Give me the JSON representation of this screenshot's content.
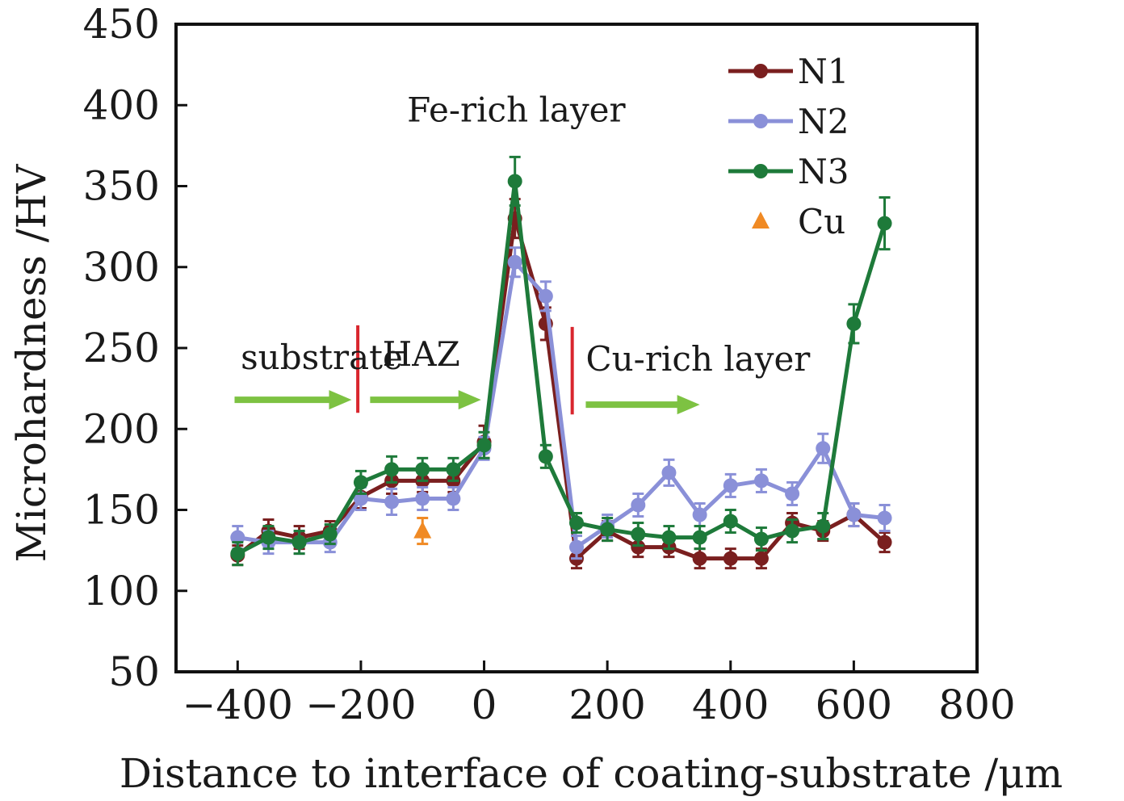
{
  "chart_data": {
    "type": "line",
    "title": "",
    "xlabel": "Distance to interface of coating-substrate /μm",
    "ylabel": "Microhardness /HV",
    "xlim": [
      -500,
      800
    ],
    "ylim": [
      50,
      450
    ],
    "xticks": [
      -400,
      -200,
      0,
      200,
      400,
      600,
      800
    ],
    "xtick_labels": [
      "−400",
      "−200",
      "0",
      "200",
      "400",
      "600",
      "800"
    ],
    "yticks": [
      50,
      100,
      150,
      200,
      250,
      300,
      350,
      400,
      450
    ],
    "ytick_labels": [
      "50",
      "100",
      "150",
      "200",
      "250",
      "300",
      "350",
      "400",
      "450"
    ],
    "grid": false,
    "legend_position": "top-right",
    "series": [
      {
        "name": "N1",
        "color": "#7a1f1f",
        "marker": "circle",
        "x": [
          -400,
          -350,
          -300,
          -250,
          -200,
          -150,
          -100,
          -50,
          0,
          50,
          100,
          150,
          200,
          250,
          300,
          350,
          400,
          450,
          500,
          550,
          600,
          650
        ],
        "y": [
          122,
          137,
          133,
          137,
          158,
          168,
          168,
          168,
          192,
          330,
          265,
          120,
          137,
          127,
          127,
          120,
          120,
          120,
          142,
          137,
          147,
          130
        ],
        "err": [
          6,
          7,
          7,
          6,
          7,
          8,
          7,
          7,
          10,
          12,
          10,
          6,
          6,
          6,
          6,
          6,
          6,
          6,
          6,
          6,
          7,
          6
        ]
      },
      {
        "name": "N2",
        "color": "#8a90d8",
        "marker": "circle",
        "x": [
          -400,
          -350,
          -300,
          -250,
          -200,
          -150,
          -100,
          -50,
          0,
          50,
          100,
          150,
          200,
          250,
          300,
          350,
          400,
          450,
          500,
          550,
          600,
          650
        ],
        "y": [
          133,
          130,
          130,
          130,
          157,
          155,
          157,
          157,
          188,
          303,
          282,
          127,
          140,
          153,
          173,
          147,
          165,
          168,
          160,
          188,
          147,
          145
        ],
        "err": [
          7,
          7,
          7,
          6,
          7,
          8,
          7,
          7,
          7,
          9,
          9,
          7,
          7,
          7,
          8,
          7,
          7,
          7,
          7,
          9,
          7,
          8
        ]
      },
      {
        "name": "N3",
        "color": "#1e7a3a",
        "marker": "circle",
        "x": [
          -400,
          -350,
          -300,
          -250,
          -200,
          -150,
          -100,
          -50,
          0,
          50,
          100,
          150,
          200,
          250,
          300,
          350,
          400,
          450,
          500,
          550,
          600,
          650
        ],
        "y": [
          123,
          133,
          130,
          135,
          167,
          175,
          175,
          175,
          190,
          353,
          183,
          142,
          138,
          135,
          133,
          133,
          143,
          132,
          137,
          140,
          265,
          327
        ],
        "err": [
          7,
          7,
          7,
          6,
          7,
          8,
          7,
          7,
          8,
          15,
          7,
          6,
          7,
          7,
          7,
          7,
          7,
          7,
          7,
          8,
          12,
          16
        ]
      },
      {
        "name": "Cu",
        "color": "#f08a24",
        "marker": "triangle",
        "line": false,
        "x": [
          -100
        ],
        "y": [
          137
        ],
        "err": [
          8
        ]
      }
    ],
    "annotations": [
      {
        "text": "substrate",
        "x": -395,
        "y": 237
      },
      {
        "text": "HAZ",
        "x": -165,
        "y": 239
      },
      {
        "text": "Fe-rich layer",
        "x": -125,
        "y": 390
      },
      {
        "text": "Cu-rich layer",
        "x": 165,
        "y": 236
      }
    ],
    "region_arrows": [
      {
        "x_from": -405,
        "x_to": -215,
        "y": 218,
        "color": "#7dc242"
      },
      {
        "x_from": -185,
        "x_to": -5,
        "y": 218,
        "color": "#7dc242"
      },
      {
        "x_from": 165,
        "x_to": 350,
        "y": 215,
        "color": "#7dc242"
      }
    ],
    "boundary_lines": [
      {
        "x": -205,
        "y_from": 210,
        "y_to": 264,
        "color": "#d9262e"
      },
      {
        "x": 143,
        "y_from": 209,
        "y_to": 263,
        "color": "#d9262e"
      }
    ]
  }
}
